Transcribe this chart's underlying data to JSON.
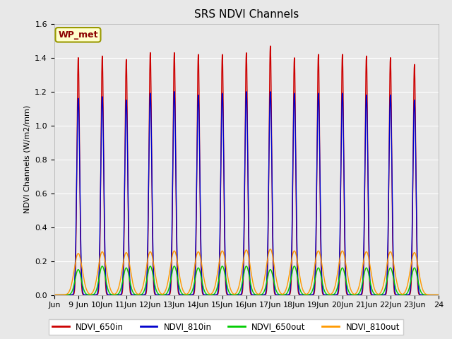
{
  "title": "SRS NDVI Channels",
  "ylabel": "NDVI Channels (W/m2/mm)",
  "annotation": "WP_met",
  "ylim": [
    0.0,
    1.6
  ],
  "yticks": [
    0.0,
    0.2,
    0.4,
    0.6,
    0.8,
    1.0,
    1.2,
    1.4,
    1.6
  ],
  "xtick_labels": [
    "Jun",
    "9 Jun",
    "10Jun",
    "11Jun",
    "12Jun",
    "13Jun",
    "14Jun",
    "15Jun",
    "16Jun",
    "17Jun",
    "18Jun",
    "19Jun",
    "20Jun",
    "21Jun",
    "22Jun",
    "23Jun",
    "24"
  ],
  "colors": {
    "NDVI_650in": "#cc0000",
    "NDVI_810in": "#0000cc",
    "NDVI_650out": "#00cc00",
    "NDVI_810out": "#ff9900"
  },
  "peak_650in": [
    1.4,
    1.41,
    1.39,
    1.43,
    1.43,
    1.42,
    1.42,
    1.43,
    1.47,
    1.4,
    1.42,
    1.42,
    1.41,
    1.4,
    1.36
  ],
  "peak_810in": [
    1.16,
    1.17,
    1.15,
    1.19,
    1.2,
    1.18,
    1.19,
    1.2,
    1.2,
    1.19,
    1.19,
    1.19,
    1.18,
    1.18,
    1.15
  ],
  "peak_650out": [
    0.15,
    0.17,
    0.16,
    0.17,
    0.17,
    0.16,
    0.17,
    0.17,
    0.15,
    0.17,
    0.16,
    0.16,
    0.16,
    0.16,
    0.16
  ],
  "peak_810out": [
    0.245,
    0.255,
    0.25,
    0.255,
    0.26,
    0.255,
    0.26,
    0.265,
    0.27,
    0.26,
    0.26,
    0.26,
    0.255,
    0.255,
    0.25
  ],
  "background_color": "#e8e8e8",
  "plot_bg_color": "#e8e8e8",
  "legend_bg": "#ffffcc",
  "legend_border": "#999900",
  "total_days": 16.0,
  "n_points": 3200
}
